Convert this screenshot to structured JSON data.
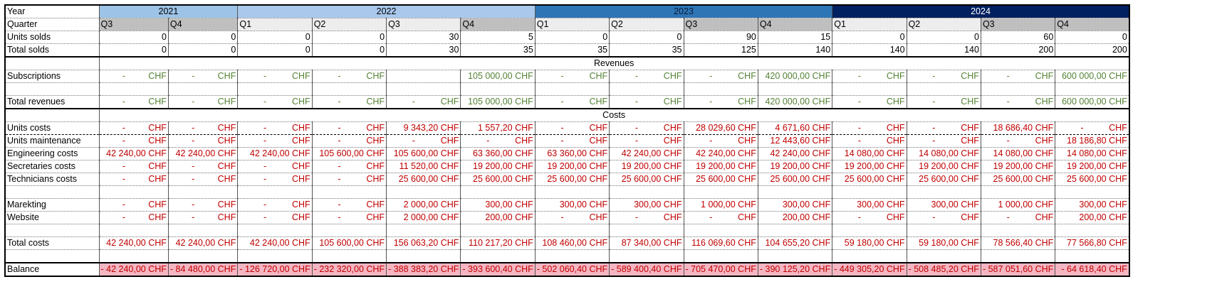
{
  "labels": {
    "year": "Year",
    "quarter": "Quarter",
    "units_sold": "Units solds",
    "total_sold": "Total solds",
    "revenues": "Revenues",
    "subscriptions": "Subscriptions",
    "total_revenues": "Total revenues",
    "costs": "Costs",
    "units_costs": "Units costs",
    "units_maintenance": "Units maintenance",
    "engineering_costs": "Engineering costs",
    "secretaries_costs": "Secretaries costs",
    "technicians_costs": "Technicians costs",
    "marketing": "Marekting",
    "website": "Website",
    "total_costs": "Total costs",
    "balance": "Balance"
  },
  "currency": "CHF",
  "dash": "-",
  "years": [
    {
      "label": "2021",
      "span": 2,
      "color": "#9dc3e6"
    },
    {
      "label": "2022",
      "span": 4,
      "color": "#a9c8ec"
    },
    {
      "label": "2023",
      "span": 4,
      "color": "#2e75b6"
    },
    {
      "label": "2024",
      "span": 4,
      "color": "#002060"
    }
  ],
  "quarters": [
    "Q3",
    "Q4",
    "Q1",
    "Q2",
    "Q3",
    "Q4",
    "Q1",
    "Q2",
    "Q3",
    "Q4",
    "Q1",
    "Q2",
    "Q3",
    "Q4"
  ],
  "quarter_shade": [
    "dark",
    "dark",
    "light",
    "light",
    "light",
    "dark",
    "light",
    "light",
    "dark",
    "dark",
    "light",
    "light",
    "dark",
    "dark"
  ],
  "units_sold": [
    "0",
    "0",
    "0",
    "0",
    "30",
    "5",
    "0",
    "0",
    "90",
    "15",
    "0",
    "0",
    "60",
    "0"
  ],
  "total_sold": [
    "0",
    "0",
    "0",
    "0",
    "30",
    "35",
    "35",
    "35",
    "125",
    "140",
    "140",
    "140",
    "200",
    "200"
  ],
  "subscriptions": [
    "-",
    "-",
    "-",
    "-",
    "",
    "105 000,00",
    "-",
    "-",
    "-",
    "420 000,00",
    "-",
    "-",
    "-",
    "600 000,00"
  ],
  "total_revenues": [
    "-",
    "-",
    "-",
    "-",
    "-",
    "105 000,00",
    "-",
    "-",
    "-",
    "420 000,00",
    "-",
    "-",
    "-",
    "600 000,00"
  ],
  "units_costs": [
    "-",
    "-",
    "-",
    "-",
    "9 343,20",
    "1 557,20",
    "-",
    "-",
    "28 029,60",
    "4 671,60",
    "-",
    "-",
    "18 686,40",
    "-"
  ],
  "units_maintenance": [
    "-",
    "-",
    "-",
    "-",
    "-",
    "-",
    "-",
    "-",
    "-",
    "12 443,60",
    "-",
    "-",
    "-",
    "18 186,80"
  ],
  "engineering_costs": [
    "42 240,00",
    "42 240,00",
    "42 240,00",
    "105 600,00",
    "105 600,00",
    "63 360,00",
    "63 360,00",
    "42 240,00",
    "42 240,00",
    "42 240,00",
    "14 080,00",
    "14 080,00",
    "14 080,00",
    "14 080,00"
  ],
  "secretaries_costs": [
    "-",
    "-",
    "-",
    "-",
    "11 520,00",
    "19 200,00",
    "19 200,00",
    "19 200,00",
    "19 200,00",
    "19 200,00",
    "19 200,00",
    "19 200,00",
    "19 200,00",
    "19 200,00"
  ],
  "technicians_costs": [
    "-",
    "-",
    "-",
    "-",
    "25 600,00",
    "25 600,00",
    "25 600,00",
    "25 600,00",
    "25 600,00",
    "25 600,00",
    "25 600,00",
    "25 600,00",
    "25 600,00",
    "25 600,00"
  ],
  "marketing": [
    "-",
    "-",
    "-",
    "-",
    "2 000,00",
    "300,00",
    "300,00",
    "300,00",
    "1 000,00",
    "300,00",
    "300,00",
    "300,00",
    "1 000,00",
    "300,00"
  ],
  "website": [
    "-",
    "-",
    "-",
    "-",
    "2 000,00",
    "200,00",
    "-",
    "-",
    "-",
    "200,00",
    "-",
    "-",
    "-",
    "200,00"
  ],
  "total_costs": [
    "42 240,00",
    "42 240,00",
    "42 240,00",
    "105 600,00",
    "156 063,20",
    "110 217,20",
    "108 460,00",
    "87 340,00",
    "116 069,60",
    "104 655,20",
    "59 180,00",
    "59 180,00",
    "78 566,40",
    "77 566,80"
  ],
  "balance": [
    "- 42 240,00",
    "- 84 480,00",
    "- 126 720,00",
    "- 232 320,00",
    "- 388 383,20",
    "- 393 600,40",
    "- 502 060,40",
    "- 589 400,40",
    "- 705 470,00",
    "- 390 125,20",
    "- 449 305,20",
    "- 508 485,20",
    "- 587 051,60",
    "- 64 618,40"
  ],
  "colors": {
    "revenue_text": "#548235",
    "cost_text": "#c00000",
    "balance_fill": "#f4b6c2"
  }
}
